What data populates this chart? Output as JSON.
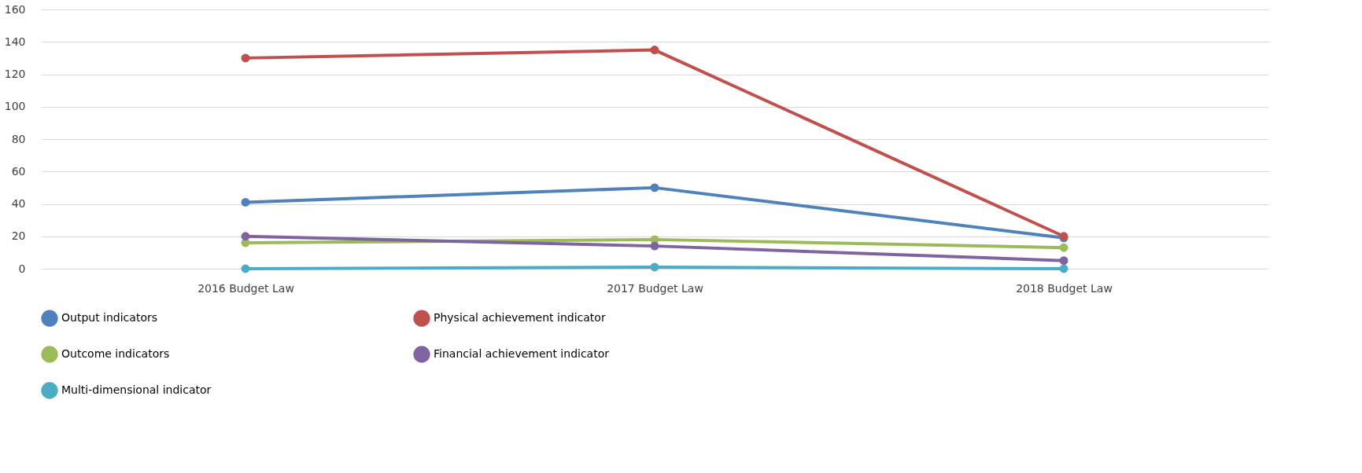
{
  "chart_data": {
    "type": "line",
    "categories": [
      "2016 Budget Law",
      "2017 Budget Law",
      "2018 Budget Law"
    ],
    "series": [
      {
        "name": "Output indicators",
        "color": "#4f81bd",
        "values": [
          41,
          50,
          19
        ]
      },
      {
        "name": "Physical achievement indicator",
        "color": "#c0504d",
        "values": [
          130,
          135,
          20
        ]
      },
      {
        "name": "Outcome indicators",
        "color": "#9bbb59",
        "values": [
          16,
          18,
          13
        ]
      },
      {
        "name": "Financial achievement indicator",
        "color": "#8064a2",
        "values": [
          20,
          14,
          5
        ]
      },
      {
        "name": "Multi-dimensional indicator",
        "color": "#4bacc6",
        "values": [
          0,
          1,
          0
        ]
      }
    ],
    "ylim": [
      0,
      160
    ],
    "yticks": [
      0,
      20,
      40,
      60,
      80,
      100,
      120,
      140,
      160
    ],
    "grid": "y",
    "legend": "bottom",
    "marker": "circle",
    "line_style": "solid"
  }
}
